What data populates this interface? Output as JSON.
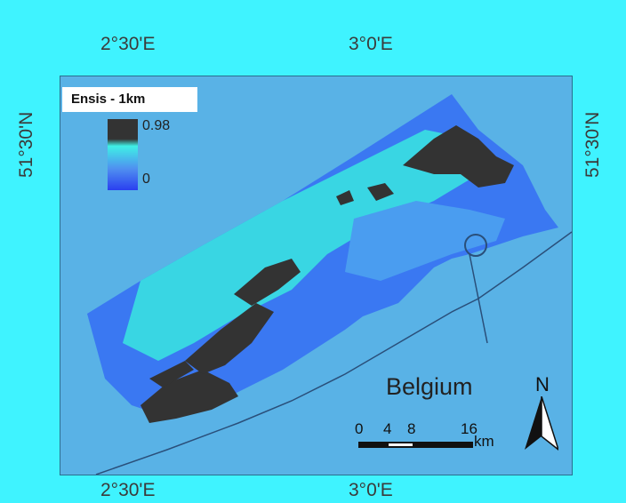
{
  "map": {
    "legend_title": "Ensis - 1km",
    "legend_max": "0.98",
    "legend_min": "0",
    "country_label": "Belgium",
    "north_label": "N",
    "scale": {
      "ticks": [
        "0",
        "4",
        "8",
        "16"
      ],
      "unit": "km"
    },
    "graticule": {
      "top": [
        "2°30'E",
        "3°0'E"
      ],
      "bottom": [
        "2°30'E",
        "3°0'E"
      ],
      "left": "51°30'N",
      "right": "51°30'N"
    },
    "colors": {
      "background": "#3ff3ff",
      "sea": "#59b2e6",
      "high": "#333333",
      "mid": "#3ff0e6",
      "low": "#2a3ff0"
    }
  }
}
